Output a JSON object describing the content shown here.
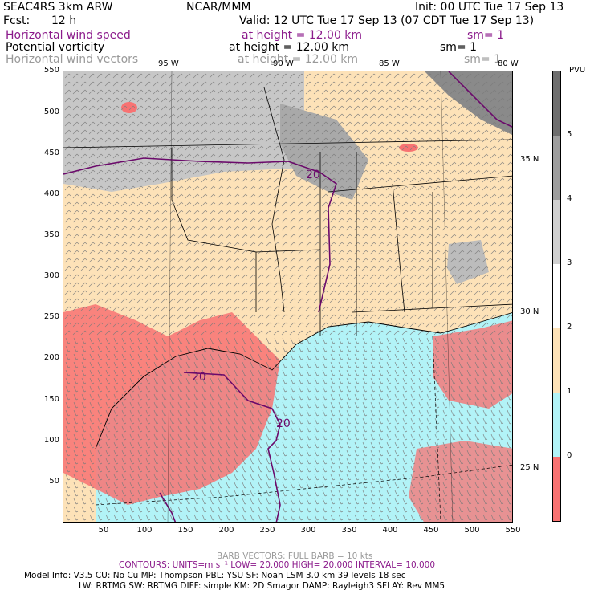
{
  "header": {
    "model": "SEAC4RS 3km ARW",
    "org": "NCAR/MMM",
    "init": "Init: 00 UTC Tue 17 Sep 13",
    "fcst_label": "Fcst:",
    "fcst_value": "12 h",
    "valid": "Valid: 12 UTC Tue 17 Sep 13 (07 CDT Tue 17 Sep 13)"
  },
  "fields": [
    {
      "name": "Horizontal wind speed",
      "height": "at height = 12.00 km",
      "sm": "sm= 1",
      "color": "#8b1a8b"
    },
    {
      "name": "Potential vorticity",
      "height": "at height = 12.00 km",
      "sm": "sm= 1",
      "color": "#000000"
    },
    {
      "name": "Horizontal wind vectors",
      "height": "at height = 12.00 km",
      "sm": "sm= 1",
      "color": "#9a9a9a"
    }
  ],
  "axes": {
    "x_ticks": [
      "50",
      "100",
      "150",
      "200",
      "250",
      "300",
      "350",
      "400",
      "450",
      "500",
      "550"
    ],
    "y_ticks": [
      "50",
      "100",
      "150",
      "200",
      "250",
      "300",
      "350",
      "400",
      "450",
      "500",
      "550"
    ],
    "lon_labels": [
      "95 W",
      "90 W",
      "85 W",
      "80 W"
    ],
    "lat_labels": [
      "35 N",
      "30 N",
      "25 N"
    ]
  },
  "contour_labels": [
    "20",
    "20",
    "20"
  ],
  "colorbar": {
    "unit": "PVU",
    "labels": [
      "5",
      "4",
      "3",
      "2",
      "1",
      "0"
    ],
    "colors": [
      "#6e6e6e",
      "#9e9e9e",
      "#d0d0d0",
      "#ffffff",
      "#fde2b8",
      "#b2f3f7",
      "#f87272"
    ]
  },
  "footer": {
    "barb": "BARB VECTORS:  FULL BARB = 10 kts",
    "contours": "CONTOURS:  UNITS=m s⁻¹   LOW=  20.000     HIGH=  20.000     INTERVAL=   10.000",
    "model_info_1": "Model Info: V3.5     CU: No Cu     MP: Thompson     PBL: YSU        SF: Noah LSM      3.0 km   39 levels    18 sec",
    "model_info_2": "LW: RRTMG     SW: RRTMG   DIFF: simple KM: 2D Smagor DAMP: Rayleigh3   SFLAY: Rev MM5"
  }
}
